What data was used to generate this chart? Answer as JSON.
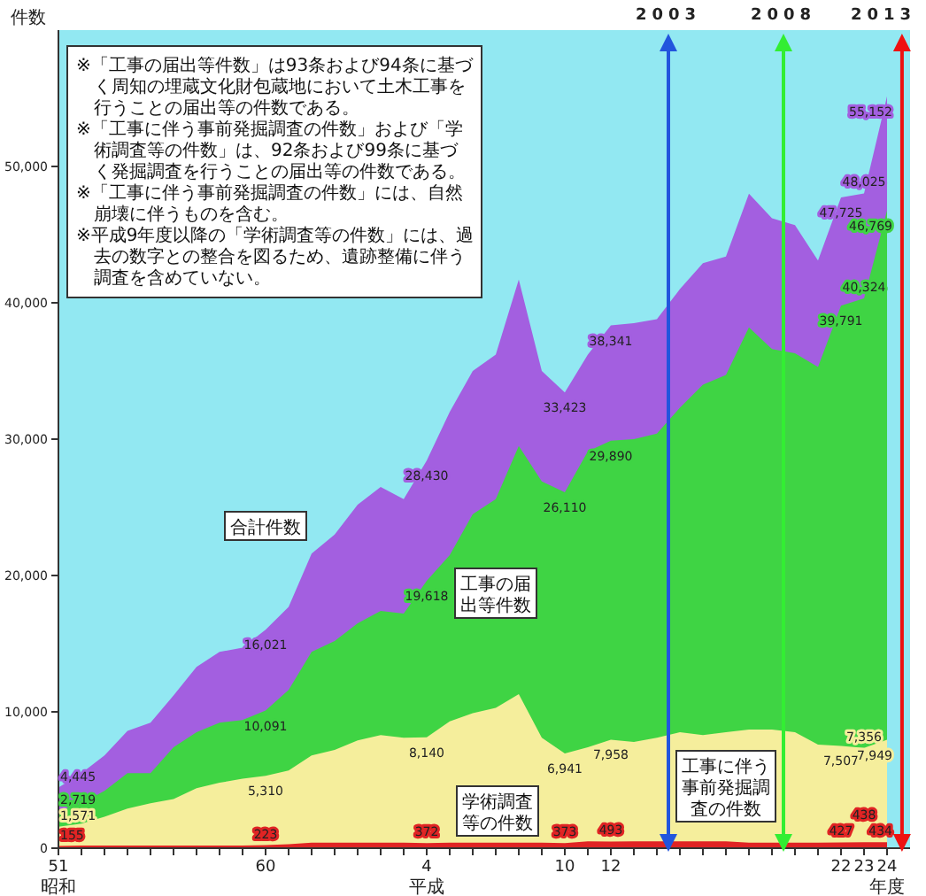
{
  "chart_data": {
    "type": "area",
    "ylabel": "件数",
    "categories": [
      "51\n昭和",
      null,
      null,
      null,
      null,
      null,
      null,
      null,
      null,
      "60",
      null,
      null,
      null,
      null,
      null,
      null,
      "4\n平成",
      null,
      null,
      null,
      null,
      null,
      "10",
      null,
      "12",
      null,
      null,
      null,
      null,
      null,
      null,
      null,
      null,
      null,
      "22",
      "23",
      "24\n年度"
    ],
    "ylim": [
      0,
      60000
    ],
    "yticks": [
      0,
      {
        "value": 10000,
        "label": "10,000"
      },
      {
        "value": 20000,
        "label": "20,000"
      },
      {
        "value": 30000,
        "label": "30,000"
      },
      {
        "value": 40000,
        "label": "40,000"
      },
      {
        "value": 50000,
        "label": "50,000"
      }
    ],
    "grid": false,
    "legend": false,
    "series": [
      {
        "name": "合計件数",
        "color": "#a35fe0",
        "values": [
          4445,
          5500,
          6800,
          8600,
          9200,
          11200,
          13300,
          14400,
          14700,
          16021,
          17700,
          21600,
          23000,
          25200,
          26500,
          25600,
          28430,
          32000,
          35000,
          36200,
          41700,
          35000,
          33423,
          36200,
          38341,
          38500,
          38800,
          41000,
          42900,
          43400,
          48000,
          46200,
          45700,
          43100,
          47725,
          48025,
          55152
        ],
        "value_labels": [
          "4,445",
          null,
          null,
          null,
          null,
          null,
          null,
          null,
          null,
          "16,021",
          null,
          null,
          null,
          null,
          null,
          null,
          "28,430",
          null,
          null,
          null,
          null,
          null,
          "33,423",
          null,
          "38,341",
          null,
          null,
          null,
          null,
          null,
          null,
          null,
          null,
          null,
          "47,725",
          "48,025",
          "55,152"
        ]
      },
      {
        "name": "工事の届出等件数",
        "color": "#3fd444",
        "values": [
          2719,
          3300,
          4200,
          5500,
          5500,
          7400,
          8500,
          9200,
          9400,
          10091,
          11600,
          14400,
          15200,
          16500,
          17400,
          17200,
          19618,
          21500,
          24500,
          25600,
          29500,
          26900,
          26110,
          29100,
          29890,
          30000,
          30400,
          32300,
          34000,
          34700,
          38200,
          36600,
          36300,
          35300,
          39791,
          40324,
          46769
        ],
        "value_labels": [
          "2,719",
          null,
          null,
          null,
          null,
          null,
          null,
          null,
          null,
          "10,091",
          null,
          null,
          null,
          null,
          null,
          null,
          "19,618",
          null,
          null,
          null,
          null,
          null,
          "26,110",
          null,
          "29,890",
          null,
          null,
          null,
          null,
          null,
          null,
          null,
          null,
          null,
          "39,791",
          "40,324",
          "46,769"
        ]
      },
      {
        "name": "工事に伴う事前発掘調査の件数",
        "color": "#f5ee9c",
        "values": [
          1571,
          1800,
          2300,
          2900,
          3300,
          3600,
          4400,
          4800,
          5100,
          5310,
          5700,
          6800,
          7200,
          7900,
          8300,
          8100,
          8140,
          9300,
          9900,
          10300,
          11300,
          8100,
          6941,
          7400,
          7958,
          7800,
          8100,
          8500,
          8300,
          8500,
          8700,
          8700,
          8500,
          7600,
          7507,
          7356,
          7949
        ],
        "value_labels": [
          "1,571",
          null,
          null,
          null,
          null,
          null,
          null,
          null,
          null,
          "5,310",
          null,
          null,
          null,
          null,
          null,
          null,
          "8,140",
          null,
          null,
          null,
          null,
          null,
          "6,941",
          null,
          "7,958",
          null,
          null,
          null,
          null,
          null,
          null,
          null,
          null,
          null,
          "7,507",
          "7,356",
          "7,949"
        ]
      },
      {
        "name": "学術調査等の件数",
        "color": "#e02424",
        "values": [
          155,
          200,
          200,
          200,
          200,
          200,
          200,
          200,
          200,
          223,
          300,
          400,
          400,
          400,
          400,
          400,
          372,
          400,
          400,
          400,
          400,
          400,
          373,
          500,
          493,
          500,
          500,
          500,
          500,
          500,
          400,
          400,
          400,
          400,
          427,
          438,
          434
        ],
        "value_labels": [
          "155",
          null,
          null,
          null,
          null,
          null,
          null,
          null,
          null,
          "223",
          null,
          null,
          null,
          null,
          null,
          null,
          "372",
          null,
          null,
          null,
          null,
          null,
          "373",
          null,
          "493",
          null,
          null,
          null,
          null,
          null,
          null,
          null,
          null,
          null,
          "427",
          "438",
          "434"
        ]
      }
    ],
    "annotations": [
      "※「工事の届出等件数」は93条および94条に基づく周知の埋蔵文化財包蔵地において土木工事を行うことの届出等の件数である。",
      "※「工事に伴う事前発掘調査の件数」および「学術調査等の件数」は、92条および99条に基づく発掘調査を行うことの届出等の件数である。",
      "※「工事に伴う事前発掘調査の件数」には、自然崩壊に伴うものを含む。",
      "※平成9年度以降の「学術調査等の件数」には、過去の数字との整合を図るため、遺跡整備に伴う調査を含めていない。",
      "2003",
      "2008",
      "2013"
    ]
  }
}
